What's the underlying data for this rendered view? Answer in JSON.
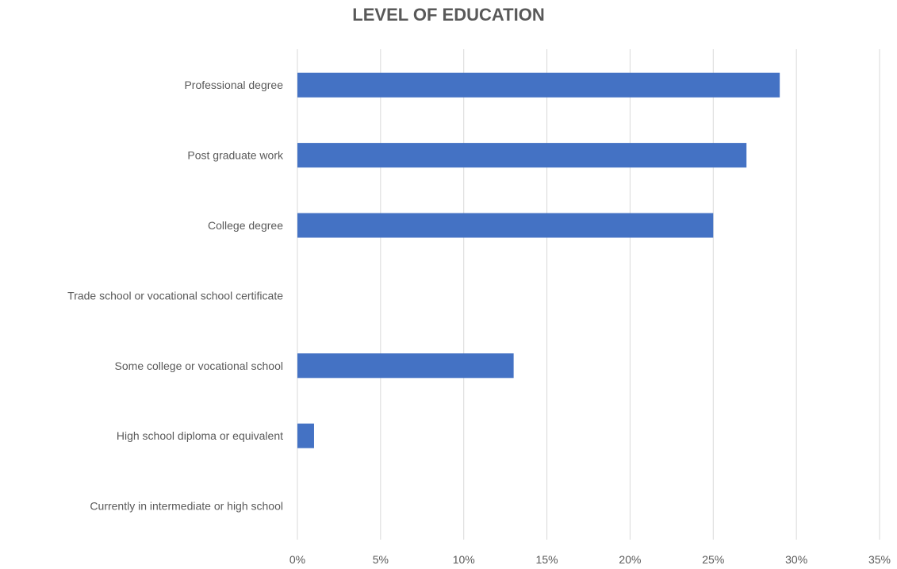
{
  "chart_data": {
    "type": "bar",
    "orientation": "horizontal",
    "title": "LEVEL OF EDUCATION",
    "categories": [
      "Professional degree",
      "Post graduate work",
      "College degree",
      "Trade school or vocational school certificate",
      "Some college or vocational school",
      "High school diploma or equivalent",
      "Currently in intermediate or high school"
    ],
    "values": [
      29,
      27,
      25,
      0,
      13,
      1,
      0
    ],
    "value_unit": "%",
    "xlim": [
      0,
      35
    ],
    "x_ticks": [
      "0%",
      "5%",
      "10%",
      "15%",
      "20%",
      "25%",
      "30%",
      "35%"
    ],
    "grid": "vertical",
    "legend": "none",
    "bar_color": "#4472C4",
    "grid_color": "#D9D9D9",
    "text_color": "#595959"
  }
}
